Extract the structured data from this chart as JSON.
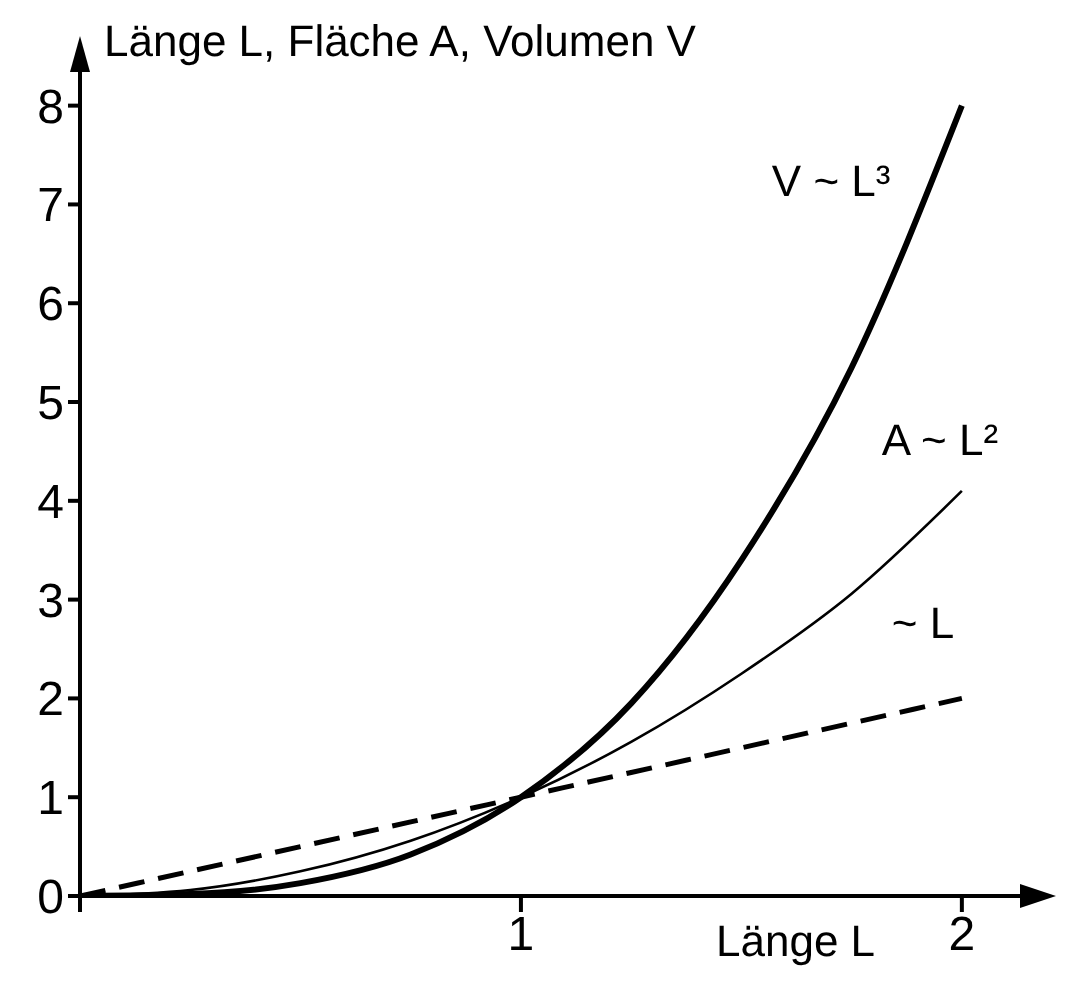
{
  "chart_data": {
    "type": "line",
    "ylabel": "Länge L, Fläche A, Volumen V",
    "xlabel": "Länge L",
    "x": [
      0,
      0.25,
      0.5,
      0.75,
      1,
      1.25,
      1.5,
      1.75,
      2
    ],
    "series": [
      {
        "name": "V ~ L³",
        "color": "#000000",
        "line_style": "solid",
        "values": [
          0,
          0.02,
          0.13,
          0.42,
          1,
          1.95,
          3.4,
          5.35,
          8
        ]
      },
      {
        "name": "A ~ L²",
        "color": "#000000",
        "line_style": "solid",
        "values": [
          0,
          0.06,
          0.25,
          0.56,
          1,
          1.56,
          2.25,
          3.06,
          4.1
        ]
      },
      {
        "name": "~ L",
        "color": "#000000",
        "line_style": "dashed",
        "values": [
          0,
          0.25,
          0.5,
          0.75,
          1,
          1.25,
          1.5,
          1.75,
          2
        ]
      }
    ],
    "xlim": [
      0,
      2.15
    ],
    "xticks": [
      {
        "value": 0,
        "label": null
      },
      1,
      2
    ],
    "ylim": [
      0,
      8.3
    ],
    "yticks": [
      0,
      1,
      2,
      3,
      4,
      5,
      6,
      7,
      8
    ],
    "grid": false,
    "legend": false,
    "marker": "none"
  }
}
